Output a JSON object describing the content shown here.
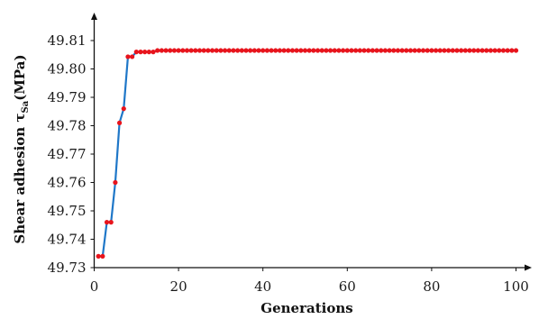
{
  "chart_data": {
    "type": "line",
    "title": "",
    "xlabel": "Generations",
    "ylabel_main": "Shear adhesion τ",
    "ylabel_sub": "Sa",
    "ylabel_unit": "(MPa)",
    "xlim": [
      0,
      106
    ],
    "ylim": [
      49.73,
      49.815
    ],
    "xticks": [
      0,
      20,
      40,
      60,
      80,
      100
    ],
    "yticks": [
      49.73,
      49.74,
      49.75,
      49.76,
      49.77,
      49.78,
      49.79,
      49.8,
      49.81
    ],
    "ytick_labels": [
      "49.73",
      "49.74",
      "49.75",
      "49.76",
      "49.77",
      "49.78",
      "49.79",
      "49.80",
      "49.81"
    ],
    "grid": false,
    "line_color": "#1f77c8",
    "marker_color": "#e8141c",
    "series": [
      {
        "x": [
          1,
          2,
          3,
          4,
          5,
          6,
          7,
          8,
          9,
          10,
          11,
          12,
          13,
          14,
          15,
          16,
          17,
          18,
          19,
          20,
          21,
          22,
          23,
          24,
          25,
          26,
          27,
          28,
          29,
          30,
          31,
          32,
          33,
          34,
          35,
          36,
          37,
          38,
          39,
          40,
          41,
          42,
          43,
          44,
          45,
          46,
          47,
          48,
          49,
          50,
          51,
          52,
          53,
          54,
          55,
          56,
          57,
          58,
          59,
          60,
          61,
          62,
          63,
          64,
          65,
          66,
          67,
          68,
          69,
          70,
          71,
          72,
          73,
          74,
          75,
          76,
          77,
          78,
          79,
          80,
          81,
          82,
          83,
          84,
          85,
          86,
          87,
          88,
          89,
          90,
          91,
          92,
          93,
          94,
          95,
          96,
          97,
          98,
          99,
          100
        ],
        "y": [
          49.734,
          49.734,
          49.746,
          49.746,
          49.76,
          49.781,
          49.786,
          49.8043,
          49.8043,
          49.806,
          49.806,
          49.806,
          49.806,
          49.806,
          49.8065,
          49.8065,
          49.8065,
          49.8065,
          49.8065,
          49.8065,
          49.8065,
          49.8065,
          49.8065,
          49.8065,
          49.8065,
          49.8065,
          49.8065,
          49.8065,
          49.8065,
          49.8065,
          49.8065,
          49.8065,
          49.8065,
          49.8065,
          49.8065,
          49.8065,
          49.8065,
          49.8065,
          49.8065,
          49.8065,
          49.8065,
          49.8065,
          49.8065,
          49.8065,
          49.8065,
          49.8065,
          49.8065,
          49.8065,
          49.8065,
          49.8065,
          49.8065,
          49.8065,
          49.8065,
          49.8065,
          49.8065,
          49.8065,
          49.8065,
          49.8065,
          49.8065,
          49.8065,
          49.8065,
          49.8065,
          49.8065,
          49.8065,
          49.8065,
          49.8065,
          49.8065,
          49.8065,
          49.8065,
          49.8065,
          49.8065,
          49.8065,
          49.8065,
          49.8065,
          49.8065,
          49.8065,
          49.8065,
          49.8065,
          49.8065,
          49.8065,
          49.8065,
          49.8065,
          49.8065,
          49.8065,
          49.8065,
          49.8065,
          49.8065,
          49.8065,
          49.8065,
          49.8065,
          49.8065,
          49.8065,
          49.8065,
          49.8065,
          49.8065,
          49.8065,
          49.8065,
          49.8065,
          49.8065,
          49.8065
        ]
      }
    ]
  }
}
